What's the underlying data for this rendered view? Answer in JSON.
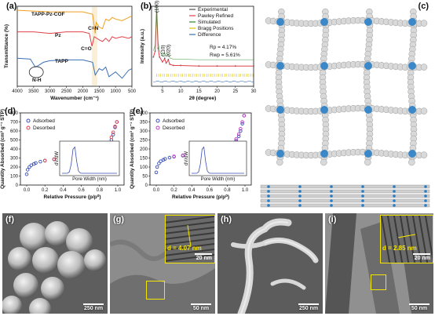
{
  "panels": {
    "a": {
      "label": "(a)",
      "xlabel": "Wavenumber (cm⁻¹)",
      "ylabel": "Transmittance (%)",
      "xticks": [
        "4000",
        "3500",
        "3000",
        "2500",
        "2000",
        "1500",
        "1000",
        "500"
      ],
      "series": [
        {
          "name": "TAPP-Pz-COF",
          "color": "#f0a020"
        },
        {
          "name": "Pz",
          "color": "#e0404a"
        },
        {
          "name": "TAPP",
          "color": "#3a6fb5"
        }
      ],
      "annotations": [
        "C=N",
        "C=O",
        "N-H"
      ],
      "annotation_colors": [
        "#f0a020",
        "#e0404a",
        "#3a6fb5"
      ]
    },
    "b": {
      "label": "(b)",
      "xlabel": "2θ (degree)",
      "ylabel": "Intensity (a.u.)",
      "xticks": [
        "5",
        "10",
        "15",
        "20",
        "25",
        "30"
      ],
      "legend": [
        "Experimental",
        "Pawley Refined",
        "Simulated",
        "Bragg Positions",
        "Difference"
      ],
      "legend_colors": [
        "#555555",
        "#e0404a",
        "#2a8a2a",
        "#e0c000",
        "#3a6fb5"
      ],
      "peaks": [
        "(100)",
        "(110)",
        "(020)"
      ],
      "rp": "Rp = 4.17%",
      "rwp": "Rwp = 5.61%"
    },
    "c": {
      "label": "(c)"
    },
    "d": {
      "label": "(d)",
      "xlabel": "Relative Pressure (p/p⁰)",
      "ylabel": "Quantity Absorbed (cm³ g⁻¹ STP)",
      "xticks": [
        "0.0",
        "0.2",
        "0.4",
        "0.6",
        "0.8",
        "1.0"
      ],
      "yticks": [
        "0",
        "100",
        "200",
        "300",
        "400",
        "500",
        "600",
        "700",
        "800"
      ],
      "legend": [
        "Adsorbed",
        "Desorbed"
      ],
      "legend_colors": [
        "#3a4fb5",
        "#e0404a"
      ],
      "inset_xlabel": "Pore Width (nm)",
      "inset_ylabel": "dV/dW"
    },
    "e": {
      "label": "(e)",
      "xlabel": "Relative Pressure (p/p⁰)",
      "ylabel": "Quantity Absorbed (cm³ g⁻¹ STP)",
      "xticks": [
        "0.0",
        "0.2",
        "0.4",
        "0.6",
        "0.8",
        "1.0"
      ],
      "yticks": [
        "0",
        "50",
        "100",
        "150",
        "200",
        "250",
        "300",
        "350",
        "400"
      ],
      "legend": [
        "Adsorbed",
        "Desorbed"
      ],
      "legend_colors": [
        "#3a4fb5",
        "#c03ac0"
      ],
      "inset_xlabel": "Pore Width (nm)",
      "inset_ylabel": "dV/dW"
    },
    "f": {
      "label": "(f)",
      "scale": "250 nm"
    },
    "g": {
      "label": "(g)",
      "scale": "50 nm",
      "inset_d": "d = 4.07 nm",
      "inset_scale": "20 nm"
    },
    "h": {
      "label": "(h)",
      "scale": "250 nm"
    },
    "i": {
      "label": "(i)",
      "scale": "50 nm",
      "inset_d": "d = 2.85 nm",
      "inset_scale": "20 nm"
    }
  },
  "chart_data": [
    {
      "type": "line",
      "panel": "a",
      "xlabel": "Wavenumber (cm⁻¹)",
      "ylabel": "Transmittance (%)",
      "xlim": [
        4000,
        500
      ],
      "series": [
        {
          "name": "TAPP-Pz-COF",
          "x": [
            4000,
            3500,
            3000,
            2500,
            2000,
            1700,
            1620,
            1590,
            1500,
            1400,
            1300,
            1200,
            1100,
            1000,
            800,
            600,
            500
          ],
          "y": [
            0.95,
            0.94,
            0.93,
            0.93,
            0.93,
            0.9,
            0.66,
            0.8,
            0.74,
            0.72,
            0.84,
            0.82,
            0.86,
            0.84,
            0.82,
            0.86,
            0.88
          ]
        },
        {
          "name": "Pz",
          "x": [
            4000,
            3500,
            3000,
            2500,
            2000,
            1800,
            1720,
            1650,
            1500,
            1400,
            1300,
            1200,
            1100,
            1000,
            800,
            600,
            500
          ],
          "y": [
            0.68,
            0.68,
            0.66,
            0.68,
            0.68,
            0.66,
            0.5,
            0.62,
            0.58,
            0.56,
            0.6,
            0.56,
            0.62,
            0.6,
            0.62,
            0.6,
            0.62
          ]
        },
        {
          "name": "TAPP",
          "x": [
            4000,
            3600,
            3450,
            3350,
            3200,
            3000,
            2500,
            2000,
            1700,
            1620,
            1500,
            1400,
            1300,
            1200,
            1000,
            800,
            600,
            500
          ],
          "y": [
            0.35,
            0.34,
            0.24,
            0.26,
            0.3,
            0.32,
            0.33,
            0.33,
            0.3,
            0.14,
            0.22,
            0.2,
            0.24,
            0.12,
            0.18,
            0.1,
            0.2,
            0.22
          ]
        }
      ]
    },
    {
      "type": "line",
      "panel": "b",
      "xlabel": "2θ (degree)",
      "ylabel": "Intensity (a.u.)",
      "xlim": [
        2,
        30
      ],
      "series": [
        {
          "name": "Experimental",
          "x": [
            2.5,
            3.0,
            3.4,
            3.8,
            4.2,
            5,
            5.6,
            6,
            6.6,
            7,
            8,
            10,
            15,
            20,
            25,
            30
          ],
          "y": [
            0.2,
            0.3,
            1.0,
            0.35,
            0.2,
            0.12,
            0.18,
            0.1,
            0.16,
            0.08,
            0.06,
            0.06,
            0.05,
            0.05,
            0.05,
            0.05
          ]
        },
        {
          "name": "Simulated",
          "x": [
            2.5,
            3.0,
            3.4,
            3.8,
            4.2,
            5,
            5.6,
            6,
            6.6,
            7,
            8,
            10,
            15,
            20,
            25,
            30
          ],
          "y": [
            0.2,
            0.3,
            0.98,
            0.34,
            0.2,
            0.12,
            0.17,
            0.1,
            0.15,
            0.08,
            0.06,
            0.06,
            0.05,
            0.05,
            0.05,
            0.05
          ]
        }
      ]
    },
    {
      "type": "scatter",
      "panel": "d",
      "xlabel": "Relative Pressure (p/p⁰)",
      "ylabel": "Quantity Absorbed (cm³ g⁻¹ STP)",
      "xlim": [
        0,
        1.0
      ],
      "ylim": [
        0,
        800
      ],
      "series": [
        {
          "name": "Adsorbed",
          "x": [
            0.0,
            0.01,
            0.03,
            0.05,
            0.08,
            0.1,
            0.15,
            0.2,
            0.3,
            0.4,
            0.5,
            0.6,
            0.7,
            0.8,
            0.85,
            0.9,
            0.93,
            0.95,
            0.97,
            0.99
          ],
          "y": [
            120,
            170,
            200,
            220,
            235,
            245,
            260,
            270,
            285,
            295,
            305,
            318,
            335,
            365,
            395,
            445,
            500,
            560,
            640,
            700
          ]
        },
        {
          "name": "Desorbed",
          "x": [
            0.99,
            0.97,
            0.95,
            0.93,
            0.9,
            0.85,
            0.8,
            0.7,
            0.6,
            0.5,
            0.4,
            0.3,
            0.2
          ],
          "y": [
            700,
            650,
            585,
            530,
            470,
            410,
            375,
            340,
            320,
            307,
            297,
            287,
            272
          ]
        }
      ]
    },
    {
      "type": "scatter",
      "panel": "e",
      "xlabel": "Relative Pressure (p/p⁰)",
      "ylabel": "Quantity Absorbed (cm³ g⁻¹ STP)",
      "xlim": [
        0,
        1.0
      ],
      "ylim": [
        0,
        400
      ],
      "series": [
        {
          "name": "Adsorbed",
          "x": [
            0.0,
            0.01,
            0.03,
            0.05,
            0.08,
            0.1,
            0.15,
            0.2,
            0.3,
            0.4,
            0.5,
            0.6,
            0.7,
            0.8,
            0.85,
            0.9,
            0.93,
            0.95,
            0.97,
            0.99
          ],
          "y": [
            70,
            100,
            120,
            132,
            140,
            145,
            152,
            157,
            163,
            168,
            173,
            180,
            190,
            207,
            222,
            245,
            270,
            300,
            340,
            385
          ]
        },
        {
          "name": "Desorbed",
          "x": [
            0.99,
            0.97,
            0.95,
            0.93,
            0.9,
            0.85,
            0.8,
            0.7,
            0.6,
            0.5,
            0.4,
            0.3,
            0.2
          ],
          "y": [
            385,
            350,
            312,
            282,
            255,
            228,
            212,
            193,
            182,
            175,
            170,
            165,
            159
          ]
        }
      ]
    }
  ]
}
